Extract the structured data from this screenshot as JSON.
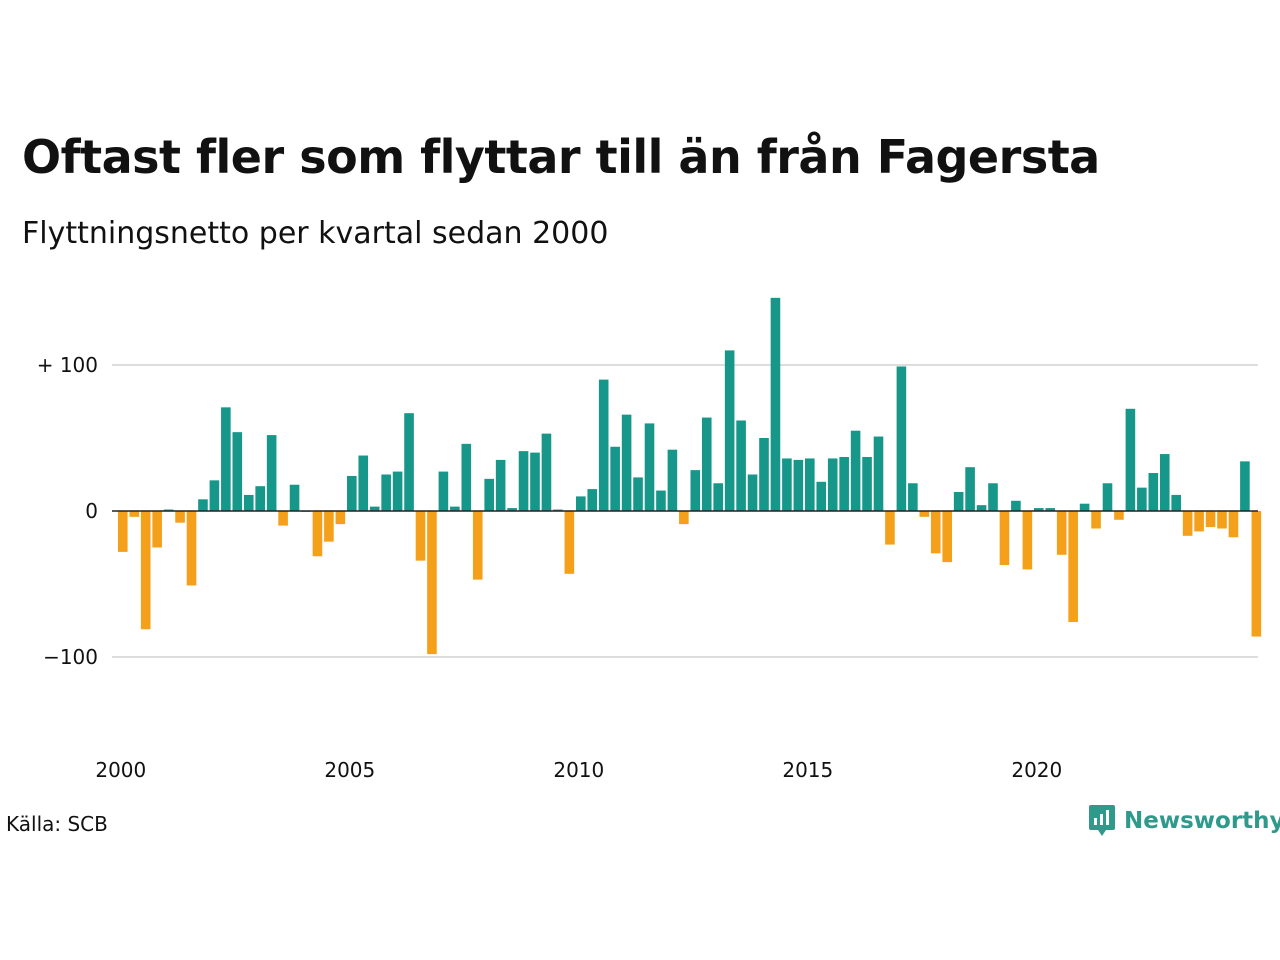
{
  "title": "Oftast fler som flyttar till än från Fagersta",
  "subtitle": "Flyttningsnetto per kvartal sedan 2000",
  "source": "Källa: SCB",
  "brand": {
    "name": "Newsworthy",
    "icon": "newsworthy-chart-bubble-icon",
    "color": "#2f9a8c"
  },
  "colors": {
    "positive": "#17968a",
    "negative": "#f5a01a",
    "grid": "#dddddd",
    "zero_line": "#222222"
  },
  "chart_data": {
    "type": "bar",
    "title": "Oftast fler som flyttar till än från Fagersta",
    "subtitle": "Flyttningsnetto per kvartal sedan 2000",
    "xlabel": "",
    "ylabel": "",
    "start": "2000 Q1",
    "frequency": "quarterly",
    "x_ticks": [
      "2000",
      "2005",
      "2010",
      "2015",
      "2020"
    ],
    "y_ticks": [
      {
        "value": 100,
        "label": "+ 100"
      },
      {
        "value": 0,
        "label": "0"
      },
      {
        "value": -100,
        "label": "−100"
      }
    ],
    "ylim": [
      -150,
      150
    ],
    "grid": true,
    "values": [
      -28,
      -4,
      -81,
      -25,
      1,
      -8,
      -51,
      8,
      21,
      71,
      54,
      11,
      17,
      52,
      -10,
      18,
      0,
      -31,
      -21,
      -9,
      24,
      38,
      3,
      25,
      27,
      67,
      -34,
      -98,
      27,
      3,
      46,
      -47,
      22,
      35,
      2,
      41,
      40,
      53,
      1,
      -43,
      10,
      15,
      90,
      44,
      66,
      23,
      60,
      14,
      42,
      -9,
      28,
      64,
      19,
      110,
      62,
      25,
      50,
      146,
      36,
      35,
      36,
      20,
      36,
      37,
      55,
      37,
      51,
      -23,
      99,
      19,
      -4,
      -29,
      -35,
      13,
      30,
      4,
      19,
      -37,
      7,
      -40,
      2,
      2,
      -30,
      -76,
      5,
      -12,
      19,
      -6,
      70,
      16,
      26,
      39,
      11,
      -17,
      -14,
      -11,
      -12,
      -18,
      34,
      -86
    ]
  }
}
